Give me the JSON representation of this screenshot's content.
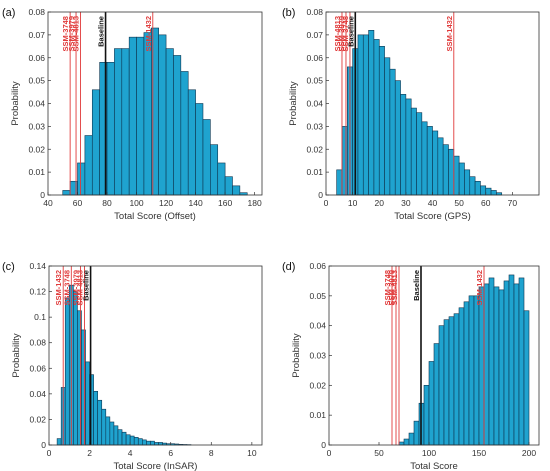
{
  "chart_data": [
    {
      "type": "bar",
      "panel_label": "(a)",
      "xlabel": "Total Score (Offset)",
      "ylabel": "Probability",
      "xlim": [
        40,
        185
      ],
      "ylim": [
        0,
        0.08
      ],
      "xticks": [
        40,
        60,
        80,
        100,
        120,
        140,
        160,
        180
      ],
      "yticks": [
        0,
        0.01,
        0.02,
        0.03,
        0.04,
        0.05,
        0.06,
        0.07,
        0.08
      ],
      "ytick_labels": [
        "0",
        "0.01",
        "0.02",
        "0.03",
        "0.04",
        "0.05",
        "0.06",
        "0.07",
        "0.08"
      ],
      "bin_start": 50,
      "bin_width": 5,
      "values": [
        0.002,
        0.006,
        0.014,
        0.026,
        0.046,
        0.058,
        0.058,
        0.064,
        0.064,
        0.069,
        0.069,
        0.071,
        0.073,
        0.07,
        0.064,
        0.061,
        0.054,
        0.046,
        0.04,
        0.033,
        0.022,
        0.014,
        0.008,
        0.004,
        0.001
      ],
      "markers": [
        {
          "label": "SSM-3748",
          "x": 55,
          "color": "#e03a3a",
          "style": "red"
        },
        {
          "label": "SSM-3979",
          "x": 59,
          "color": "#e03a3a",
          "style": "red"
        },
        {
          "label": "SSM-4813",
          "x": 62,
          "color": "#e03a3a",
          "style": "red"
        },
        {
          "label": "Baseline",
          "x": 79,
          "color": "#111111",
          "style": "black"
        },
        {
          "label": "SSM-1432",
          "x": 111,
          "color": "#e03a3a",
          "style": "red"
        }
      ],
      "grid": false
    },
    {
      "type": "bar",
      "panel_label": "(b)",
      "xlabel": "Total Score (GPS)",
      "ylabel": "Probability",
      "xlim": [
        0,
        80
      ],
      "ylim": [
        0,
        0.08
      ],
      "xticks": [
        0,
        10,
        20,
        30,
        40,
        50,
        60,
        70
      ],
      "yticks": [
        0,
        0.01,
        0.02,
        0.03,
        0.04,
        0.05,
        0.06,
        0.07,
        0.08
      ],
      "ytick_labels": [
        "0",
        "0.01",
        "0.02",
        "0.03",
        "0.04",
        "0.05",
        "0.06",
        "0.07",
        "0.08"
      ],
      "bin_start": 4,
      "bin_width": 2,
      "values": [
        0.011,
        0.03,
        0.056,
        0.064,
        0.07,
        0.07,
        0.072,
        0.068,
        0.065,
        0.06,
        0.055,
        0.05,
        0.044,
        0.042,
        0.038,
        0.036,
        0.032,
        0.03,
        0.028,
        0.025,
        0.022,
        0.02,
        0.017,
        0.014,
        0.011,
        0.008,
        0.006,
        0.004,
        0.003,
        0.002,
        0.001
      ],
      "markers": [
        {
          "label": "SSM-4813",
          "x": 6,
          "color": "#e03a3a",
          "style": "red"
        },
        {
          "label": "SSM-3979",
          "x": 7.5,
          "color": "#e03a3a",
          "style": "red"
        },
        {
          "label": "SSM-3748",
          "x": 9,
          "color": "#e03a3a",
          "style": "red"
        },
        {
          "label": "Baseline",
          "x": 11,
          "color": "#111111",
          "style": "black"
        },
        {
          "label": "SSM-1432",
          "x": 48,
          "color": "#e03a3a",
          "style": "red"
        }
      ],
      "grid": false
    },
    {
      "type": "bar",
      "panel_label": "(c)",
      "xlabel": "Total Score (InSAR)",
      "ylabel": "Probability",
      "xlim": [
        0,
        10.5
      ],
      "ylim": [
        0,
        0.14
      ],
      "xticks": [
        0,
        2,
        4,
        6,
        8,
        10
      ],
      "yticks": [
        0,
        0.02,
        0.04,
        0.06,
        0.08,
        0.1,
        0.12,
        0.14
      ],
      "ytick_labels": [
        "0",
        "0.02",
        "0.04",
        "0.06",
        "0.08",
        "0.1",
        "0.12",
        "0.14"
      ],
      "bin_start": 0.4,
      "bin_width": 0.2,
      "values": [
        0.005,
        0.045,
        0.115,
        0.125,
        0.12,
        0.105,
        0.09,
        0.065,
        0.055,
        0.042,
        0.035,
        0.028,
        0.022,
        0.018,
        0.015,
        0.012,
        0.01,
        0.008,
        0.007,
        0.006,
        0.005,
        0.004,
        0.003,
        0.003,
        0.002,
        0.002,
        0.0015,
        0.001,
        0.001,
        0.0008,
        0.0005,
        0.0004,
        0.0003
      ],
      "markers": [
        {
          "label": "SSM-1432",
          "x": 0.7,
          "color": "#e03a3a",
          "style": "red"
        },
        {
          "label": "SSM-3748",
          "x": 1.1,
          "color": "#e03a3a",
          "style": "red"
        },
        {
          "label": "SSM-3979",
          "x": 1.55,
          "color": "#e03a3a",
          "style": "red"
        },
        {
          "label": "SSM-4813",
          "x": 1.75,
          "color": "#e03a3a",
          "style": "red"
        },
        {
          "label": "Baseline",
          "x": 2.05,
          "color": "#111111",
          "style": "black"
        }
      ],
      "grid": false
    },
    {
      "type": "bar",
      "panel_label": "(d)",
      "xlabel": "Total Score",
      "ylabel": "Probability",
      "xlim": [
        0,
        210
      ],
      "ylim": [
        0,
        0.06
      ],
      "xticks": [
        0,
        50,
        100,
        150,
        200
      ],
      "yticks": [
        0,
        0.01,
        0.02,
        0.03,
        0.04,
        0.05,
        0.06
      ],
      "ytick_labels": [
        "0",
        "0.01",
        "0.02",
        "0.03",
        "0.04",
        "0.05",
        "0.06"
      ],
      "bin_start": 70,
      "bin_width": 5,
      "values": [
        0.001,
        0.002,
        0.004,
        0.008,
        0.014,
        0.02,
        0.028,
        0.034,
        0.04,
        0.042,
        0.043,
        0.044,
        0.046,
        0.048,
        0.05,
        0.05,
        0.053,
        0.054,
        0.056,
        0.053,
        0.052,
        0.055,
        0.057,
        0.054,
        0.056,
        0.045
      ],
      "markers": [
        {
          "label": "SSM-3748",
          "x": 63,
          "color": "#e03a3a",
          "style": "red"
        },
        {
          "label": "SSM-3979",
          "x": 67,
          "color": "#e03a3a",
          "style": "red"
        },
        {
          "label": "SSM-4813",
          "x": 70,
          "color": "#e03a3a",
          "style": "red"
        },
        {
          "label": "Baseline",
          "x": 92,
          "color": "#111111",
          "style": "black"
        },
        {
          "label": "SSM-1432",
          "x": 155,
          "color": "#e03a3a",
          "style": "red"
        }
      ],
      "grid": false
    }
  ],
  "colors": {
    "bar_fill": "#1fa3cf",
    "bar_edge": "#0d3550",
    "marker_red": "#e03a3a",
    "marker_black": "#111111"
  }
}
